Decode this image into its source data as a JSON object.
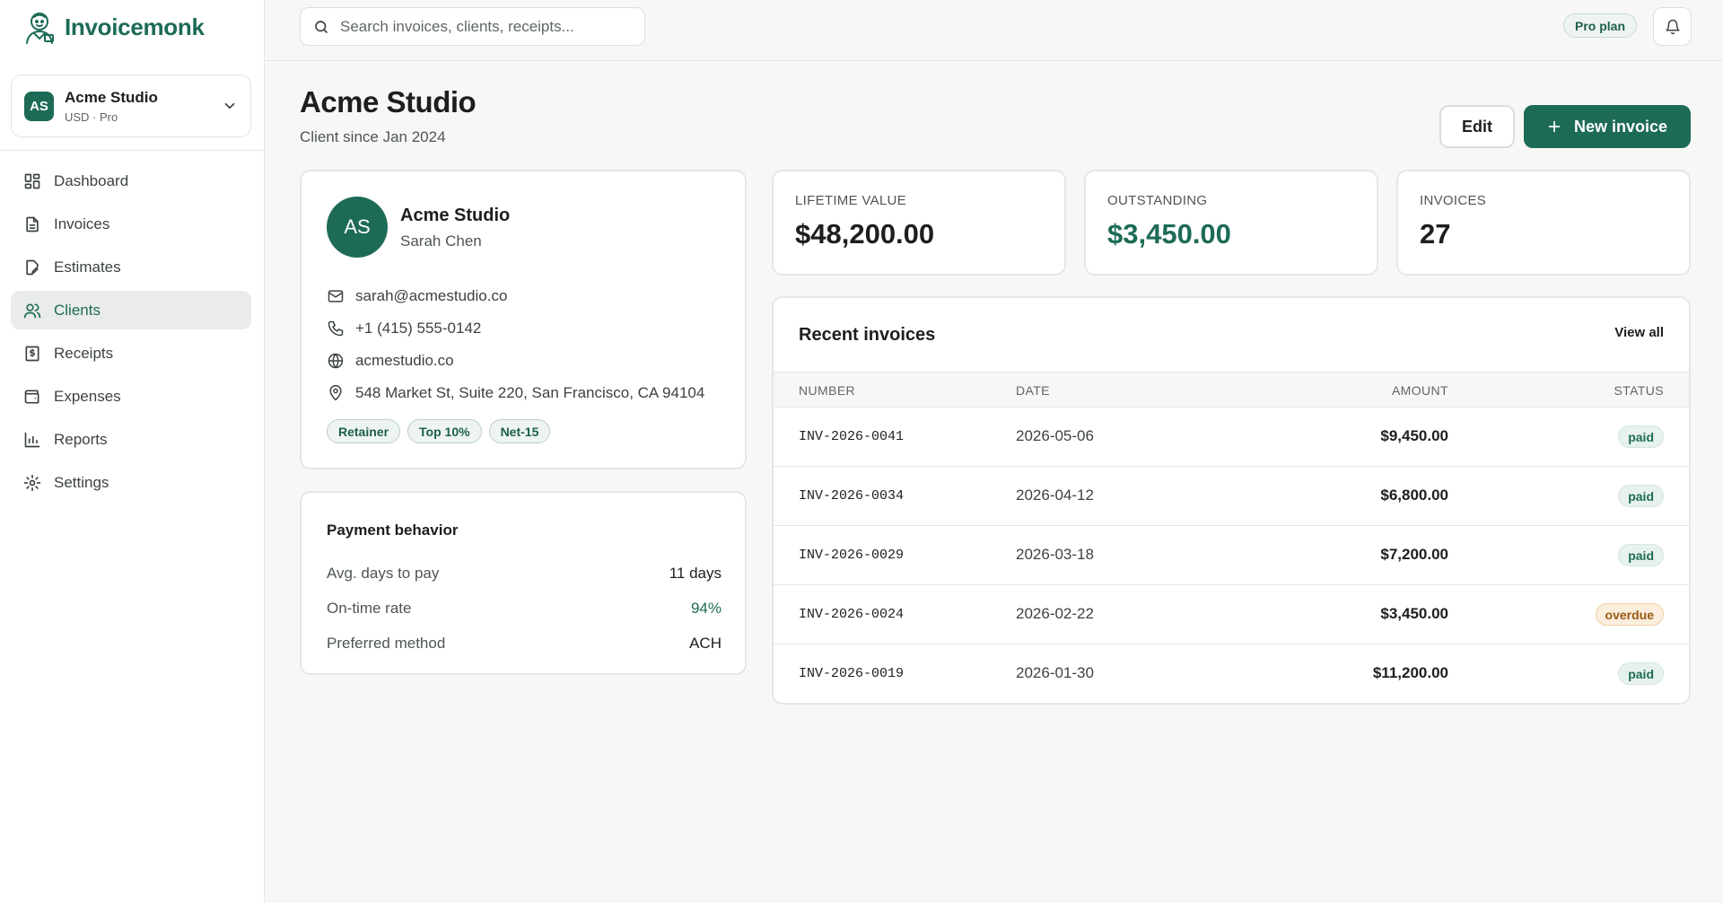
{
  "app": {
    "name": "Invoicemonk",
    "accent": "#1d6b57"
  },
  "workspace": {
    "initials": "AS",
    "name": "Acme Studio",
    "sub": "USD · Pro"
  },
  "nav": [
    {
      "label": "Dashboard",
      "icon": "dashboard-icon",
      "active": false
    },
    {
      "label": "Invoices",
      "icon": "invoice-icon",
      "active": false
    },
    {
      "label": "Estimates",
      "icon": "estimate-icon",
      "active": false
    },
    {
      "label": "Clients",
      "icon": "users-icon",
      "active": true
    },
    {
      "label": "Receipts",
      "icon": "receipt-icon",
      "active": false
    },
    {
      "label": "Expenses",
      "icon": "wallet-icon",
      "active": false
    },
    {
      "label": "Reports",
      "icon": "chart-icon",
      "active": false
    },
    {
      "label": "Settings",
      "icon": "gear-icon",
      "active": false
    }
  ],
  "topbar": {
    "search_placeholder": "Search invoices, clients, receipts...",
    "plan_badge": "Pro plan"
  },
  "header": {
    "title": "Acme Studio",
    "subtitle": "Client since Jan 2024",
    "edit_label": "Edit",
    "new_invoice_label": "New invoice"
  },
  "client": {
    "initials": "AS",
    "name": "Acme Studio",
    "contact": "Sarah Chen",
    "email": "sarah@acmestudio.co",
    "phone": "+1 (415) 555-0142",
    "website": "acmestudio.co",
    "address": "548 Market St, Suite 220, San Francisco, CA 94104",
    "tags": [
      "Retainer",
      "Top 10%",
      "Net-15"
    ]
  },
  "payment_behavior": {
    "title": "Payment behavior",
    "rows": [
      {
        "label": "Avg. days to pay",
        "value": "11 days"
      },
      {
        "label": "On-time rate",
        "value": "94%"
      },
      {
        "label": "Preferred method",
        "value": "ACH"
      }
    ]
  },
  "stats": [
    {
      "label": "LIFETIME VALUE",
      "value": "$48,200.00"
    },
    {
      "label": "OUTSTANDING",
      "value": "$3,450.00"
    },
    {
      "label": "INVOICES",
      "value": "27"
    }
  ],
  "recent": {
    "title": "Recent invoices",
    "view_all": "View all",
    "columns": [
      "NUMBER",
      "DATE",
      "AMOUNT",
      "STATUS"
    ],
    "rows": [
      {
        "number": "INV-2026-0041",
        "date": "2026-05-06",
        "amount": "$9,450.00",
        "status": "paid"
      },
      {
        "number": "INV-2026-0034",
        "date": "2026-04-12",
        "amount": "$6,800.00",
        "status": "paid"
      },
      {
        "number": "INV-2026-0029",
        "date": "2026-03-18",
        "amount": "$7,200.00",
        "status": "paid"
      },
      {
        "number": "INV-2026-0024",
        "date": "2026-02-22",
        "amount": "$3,450.00",
        "status": "overdue"
      },
      {
        "number": "INV-2026-0019",
        "date": "2026-01-30",
        "amount": "$11,200.00",
        "status": "paid"
      }
    ]
  }
}
